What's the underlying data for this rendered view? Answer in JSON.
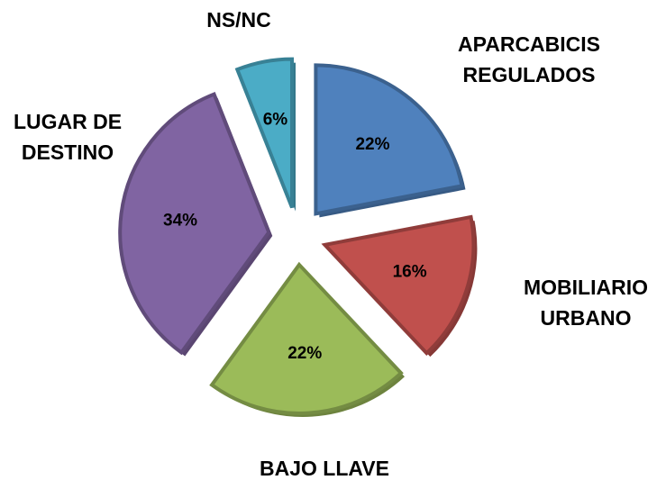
{
  "chart_data": {
    "type": "pie",
    "categories": [
      "APARCABICIS REGULADOS",
      "MOBILIARIO URBANO",
      "BAJO LLAVE",
      "LUGAR DE DESTINO",
      "NS/NC"
    ],
    "values": [
      22,
      16,
      22,
      34,
      6
    ],
    "value_labels": [
      "22%",
      "16%",
      "22%",
      "34%",
      "6%"
    ],
    "colors": [
      "#4f81bd",
      "#c0504d",
      "#9bbb59",
      "#8064a2",
      "#4bacc6"
    ]
  }
}
